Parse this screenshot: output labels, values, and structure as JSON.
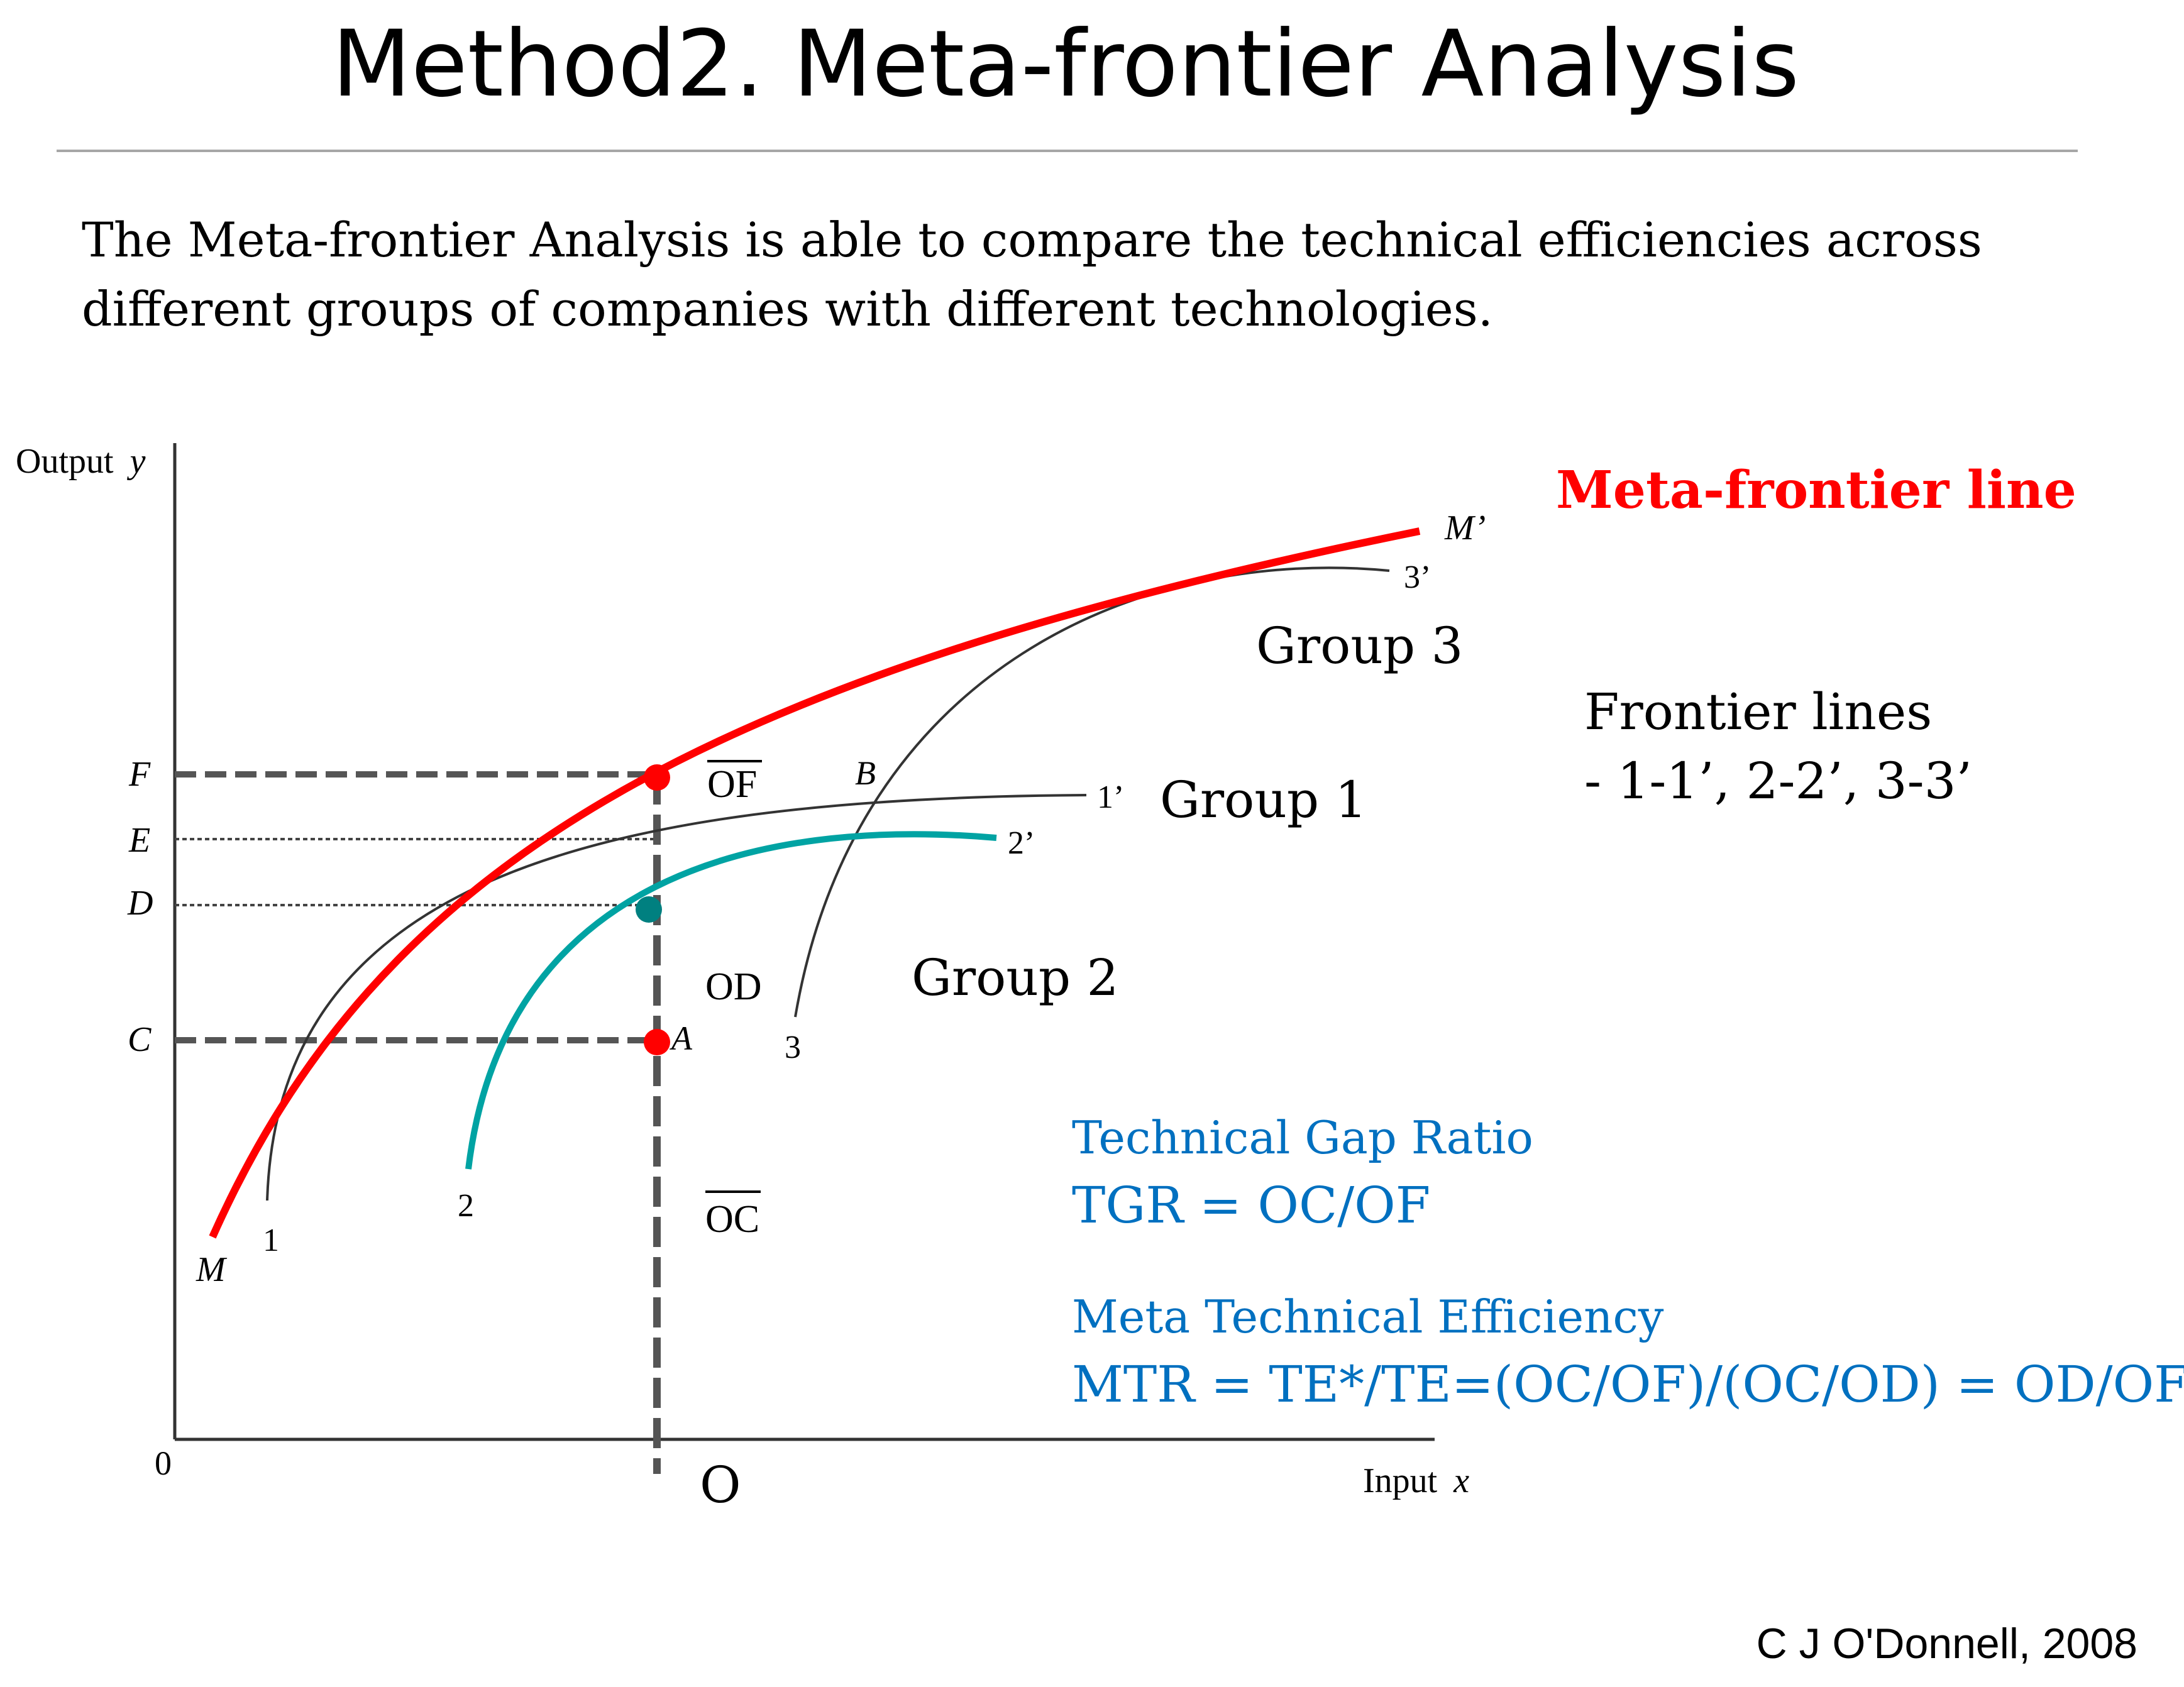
{
  "slide": {
    "title": "Method2. Meta-frontier Analysis",
    "intro_line1": "The Meta-frontier Analysis is able to compare the technical efficiencies across",
    "intro_line2": "different groups of companies with different technologies.",
    "credit": "C J O'Donnell, 2008"
  },
  "diagram": {
    "y_axis_label": "Output",
    "y_axis_var": "y",
    "x_axis_label": "Input",
    "x_axis_var": "x",
    "origin_label": "0",
    "o_label": "O",
    "level_labels": {
      "F": "F",
      "E": "E",
      "D": "D",
      "C": "C"
    },
    "curve_labels": {
      "M": "M",
      "M_prime": "M’",
      "one": "1",
      "one_prime": "1’",
      "two": "2",
      "two_prime": "2’",
      "three": "3",
      "three_prime": "3’"
    },
    "point_labels": {
      "A": "A",
      "B": "B"
    },
    "segment_labels": {
      "OF": "OF",
      "OD": "OD",
      "OC": "OC"
    },
    "group_labels": {
      "group1": "Group 1",
      "group2": "Group 2",
      "group3": "Group 3"
    },
    "meta_frontier_label": "Meta-frontier line",
    "frontier_lines_title": "Frontier lines",
    "frontier_lines_list": "- 1-1’, 2-2’, 3-3’",
    "tgr_title": "Technical Gap Ratio",
    "tgr_formula": "TGR = OC/OF",
    "mte_title": "Meta Technical Efficiency",
    "mte_formula": "MTR = TE*/TE=(OC/OF)/(OC/OD) = OD/OF",
    "colors": {
      "meta_frontier": "#ff0000",
      "group2_frontier": "#00a3a3",
      "group_frontiers": "#333333",
      "formula_text": "#0070c0",
      "point_A": "#ff0000",
      "point_on_meta": "#ff0000",
      "point_on_group2": "#008080"
    }
  }
}
